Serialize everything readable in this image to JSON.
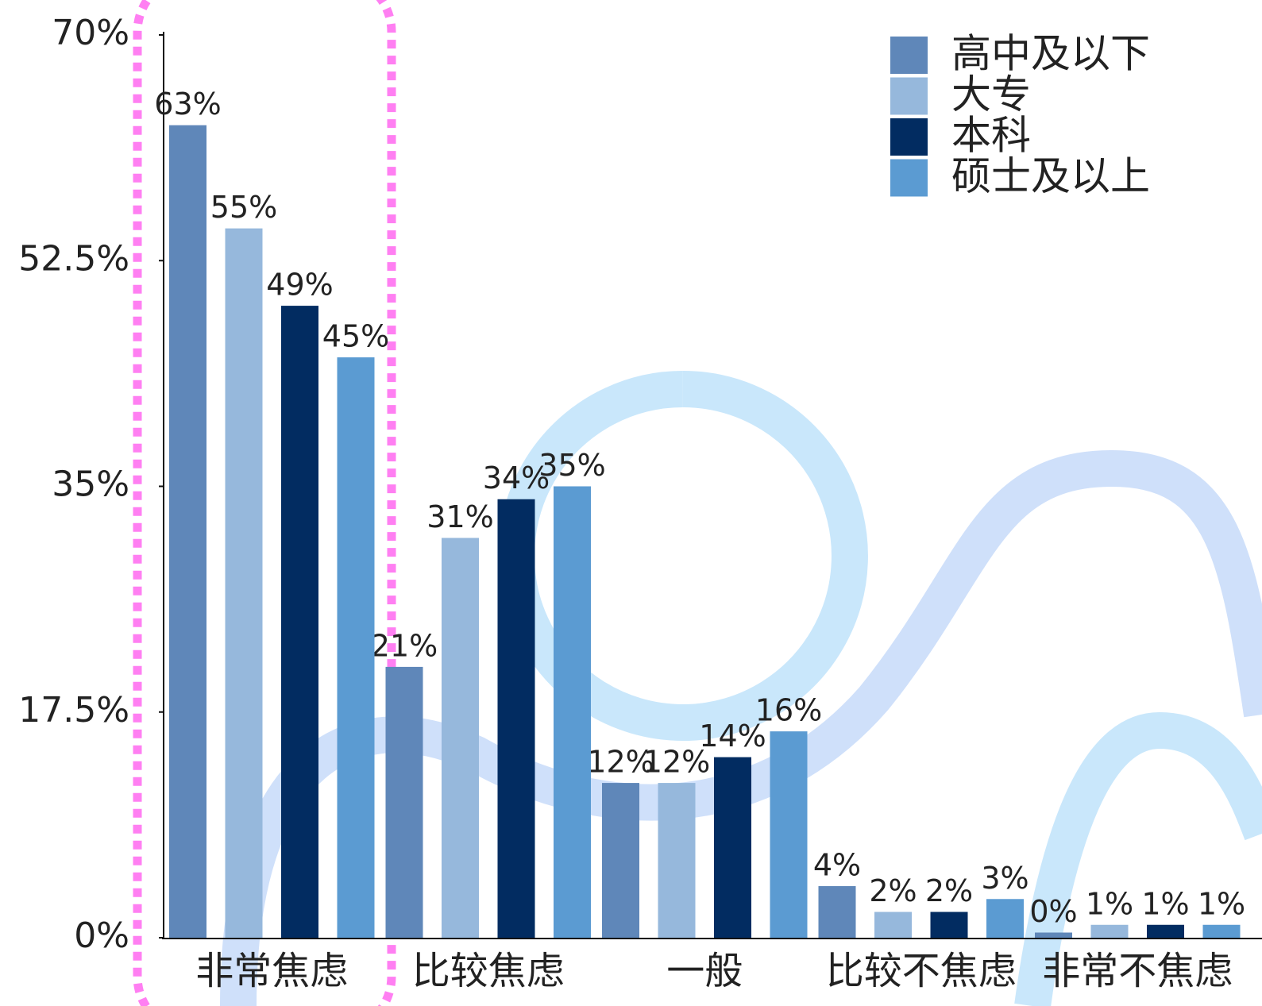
{
  "chart_data": {
    "type": "bar",
    "categories": [
      "非常焦虑",
      "比较焦虑",
      "一般",
      "比较不焦虑",
      "非常不焦虑"
    ],
    "series": [
      {
        "name": "高中及以下",
        "color": "#5f87b9",
        "values": [
          63,
          21,
          12,
          4,
          0.4
        ],
        "value_labels": [
          "63%",
          "21%",
          "12%",
          "4%",
          "0%"
        ]
      },
      {
        "name": "大专",
        "color": "#96b8dc",
        "values": [
          55,
          31,
          12,
          2,
          1
        ],
        "value_labels": [
          "55%",
          "31%",
          "12%",
          "2%",
          "1%"
        ]
      },
      {
        "name": "本科",
        "color": "#022c61",
        "values": [
          49,
          34,
          14,
          2,
          1
        ],
        "value_labels": [
          "49%",
          "34%",
          "14%",
          "2%",
          "1%"
        ]
      },
      {
        "name": "硕士及以上",
        "color": "#5b9bd2",
        "values": [
          45,
          35,
          16,
          3,
          1
        ],
        "value_labels": [
          "45%",
          "35%",
          "16%",
          "3%",
          "1%"
        ]
      }
    ],
    "ylim": [
      0,
      70
    ],
    "yticks": [
      {
        "value": 0,
        "label": "0%"
      },
      {
        "value": 17.5,
        "label": "17.5%"
      },
      {
        "value": 35,
        "label": "35%"
      },
      {
        "value": 52.5,
        "label": "52.5%"
      },
      {
        "value": 70,
        "label": "70%"
      }
    ],
    "legend": "top-right"
  }
}
